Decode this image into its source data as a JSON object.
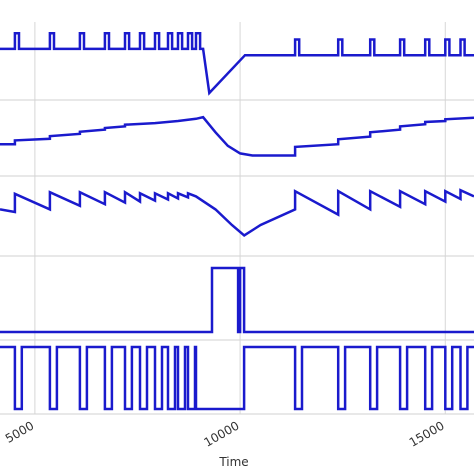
{
  "chart_data": [
    {
      "type": "line",
      "color": "#1a1acd",
      "xlim": [
        4150,
        15700
      ],
      "ylim": [
        0,
        1
      ],
      "x": [
        4150,
        4512,
        4512,
        4612,
        4612,
        5366,
        5366,
        5466,
        5466,
        6098,
        6098,
        6198,
        6198,
        6707,
        6707,
        6807,
        6807,
        7195,
        7195,
        7295,
        7295,
        7561,
        7561,
        7661,
        7661,
        7927,
        7927,
        8027,
        8027,
        8244,
        8244,
        8344,
        8344,
        8488,
        8488,
        8588,
        8588,
        8732,
        8732,
        8832,
        8832,
        8927,
        8927,
        9027,
        9027,
        9100,
        9250,
        10120,
        11340,
        11340,
        11440,
        11440,
        12390,
        12390,
        12490,
        12490,
        13170,
        13170,
        13270,
        13270,
        13900,
        13900,
        14000,
        14000,
        14510,
        14510,
        14610,
        14610,
        15000,
        15000,
        15100,
        15100,
        15370,
        15370,
        15470,
        15470,
        15700
      ],
      "values": [
        0.7,
        0.7,
        0.95,
        0.95,
        0.7,
        0.7,
        0.95,
        0.95,
        0.7,
        0.7,
        0.95,
        0.95,
        0.7,
        0.7,
        0.95,
        0.95,
        0.7,
        0.7,
        0.95,
        0.95,
        0.7,
        0.7,
        0.95,
        0.95,
        0.7,
        0.7,
        0.95,
        0.95,
        0.7,
        0.7,
        0.95,
        0.95,
        0.7,
        0.7,
        0.95,
        0.95,
        0.7,
        0.7,
        0.95,
        0.95,
        0.7,
        0.7,
        0.95,
        0.95,
        0.7,
        0.7,
        0,
        0.6,
        0.6,
        0.85,
        0.85,
        0.6,
        0.6,
        0.85,
        0.85,
        0.6,
        0.6,
        0.85,
        0.85,
        0.6,
        0.6,
        0.85,
        0.85,
        0.6,
        0.6,
        0.85,
        0.85,
        0.6,
        0.6,
        0.85,
        0.85,
        0.6,
        0.6,
        0.85,
        0.85,
        0.6,
        0.6
      ]
    },
    {
      "type": "line",
      "color": "#1a1acd",
      "xlim": [
        4150,
        15700
      ],
      "ylim": [
        0,
        1
      ],
      "x": [
        4150,
        4512,
        4512,
        5366,
        5366,
        6098,
        6098,
        6707,
        6707,
        7195,
        7195,
        7927,
        8488,
        8927,
        9100,
        9400,
        9700,
        10000,
        10300,
        11340,
        11340,
        12390,
        12390,
        13170,
        13170,
        13900,
        13900,
        14510,
        14510,
        15000,
        15000,
        15700
      ],
      "values": [
        0.33,
        0.33,
        0.4,
        0.43,
        0.48,
        0.52,
        0.56,
        0.6,
        0.63,
        0.66,
        0.69,
        0.72,
        0.76,
        0.8,
        0.83,
        0.55,
        0.3,
        0.16,
        0.12,
        0.12,
        0.28,
        0.33,
        0.42,
        0.47,
        0.55,
        0.6,
        0.66,
        0.7,
        0.74,
        0.76,
        0.79,
        0.82
      ]
    },
    {
      "type": "line",
      "color": "#1a1acd",
      "xlim": [
        4150,
        15700
      ],
      "ylim": [
        0,
        1
      ],
      "x": [
        4150,
        4512,
        4512,
        5366,
        5366,
        6098,
        6098,
        6707,
        6707,
        7195,
        7195,
        7561,
        7561,
        7927,
        7927,
        8244,
        8244,
        8488,
        8488,
        8732,
        8732,
        8927,
        9400,
        9800,
        10100,
        10500,
        11340,
        11340,
        12390,
        12390,
        13170,
        13170,
        13900,
        13900,
        14510,
        14510,
        15000,
        15000,
        15370,
        15370,
        15700
      ],
      "values": [
        0.55,
        0.5,
        0.85,
        0.55,
        0.88,
        0.62,
        0.88,
        0.65,
        0.88,
        0.68,
        0.88,
        0.7,
        0.86,
        0.72,
        0.86,
        0.74,
        0.86,
        0.76,
        0.86,
        0.78,
        0.86,
        0.8,
        0.55,
        0.25,
        0.05,
        0.25,
        0.55,
        0.9,
        0.45,
        0.9,
        0.55,
        0.9,
        0.6,
        0.9,
        0.65,
        0.9,
        0.7,
        0.9,
        0.75,
        0.92,
        0.8
      ]
    },
    {
      "type": "line",
      "color": "#1a1acd",
      "xlim": [
        4150,
        15700
      ],
      "ylim": [
        0,
        1
      ],
      "x": [
        4150,
        9317,
        9317,
        9951,
        9951,
        10000,
        10000,
        10098,
        10098,
        15700
      ],
      "values": [
        0,
        0,
        1,
        1,
        0,
        0,
        1,
        1,
        0,
        0
      ]
    },
    {
      "type": "line",
      "color": "#1a1acd",
      "xlim": [
        4150,
        15700
      ],
      "ylim": [
        0,
        1
      ],
      "xticks": [
        5000,
        10000,
        15000
      ],
      "xlabel": "Time",
      "x": [
        4150,
        4512,
        4512,
        4682,
        4682,
        5366,
        5366,
        5536,
        5536,
        6098,
        6098,
        6268,
        6268,
        6707,
        6707,
        6877,
        6877,
        7195,
        7195,
        7365,
        7365,
        7561,
        7561,
        7731,
        7731,
        7927,
        7927,
        8097,
        8097,
        8244,
        8244,
        8414,
        8414,
        8488,
        8488,
        8658,
        8658,
        8732,
        8732,
        8902,
        8902,
        8927,
        8927,
        10098,
        10098,
        11340,
        11340,
        11510,
        11510,
        12390,
        12390,
        12560,
        12560,
        13170,
        13170,
        13340,
        13340,
        13900,
        13900,
        14070,
        14070,
        14510,
        14510,
        14680,
        14680,
        15000,
        15000,
        15170,
        15170,
        15370,
        15370,
        15540,
        15540,
        15700
      ],
      "values": [
        1,
        1,
        0,
        0,
        1,
        1,
        0,
        0,
        1,
        1,
        0,
        0,
        1,
        1,
        0,
        0,
        1,
        1,
        0,
        0,
        1,
        1,
        0,
        0,
        1,
        1,
        0,
        0,
        1,
        1,
        0,
        0,
        1,
        1,
        0,
        0,
        1,
        1,
        0,
        0,
        1,
        1,
        0,
        0,
        1,
        1,
        0,
        0,
        1,
        1,
        0,
        0,
        1,
        1,
        0,
        0,
        1,
        1,
        0,
        0,
        1,
        1,
        0,
        0,
        1,
        1,
        0,
        0,
        1,
        1,
        0,
        0,
        1,
        1
      ]
    }
  ]
}
